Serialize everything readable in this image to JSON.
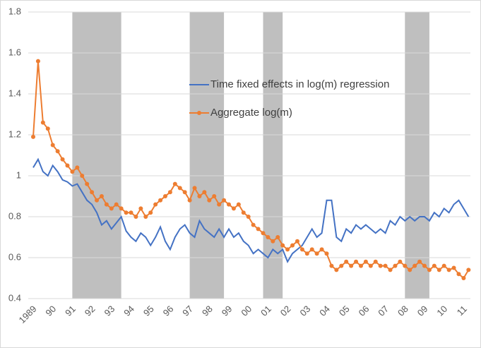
{
  "chart_data": {
    "type": "line",
    "categories": [
      "1989",
      null,
      null,
      null,
      "90",
      null,
      null,
      null,
      "91",
      null,
      null,
      null,
      "92",
      null,
      null,
      null,
      "93",
      null,
      null,
      null,
      "94",
      null,
      null,
      null,
      "95",
      null,
      null,
      null,
      "96",
      null,
      null,
      null,
      "97",
      null,
      null,
      null,
      "98",
      null,
      null,
      null,
      "99",
      null,
      null,
      null,
      "00",
      null,
      null,
      null,
      "01",
      null,
      null,
      null,
      "02",
      null,
      null,
      null,
      "03",
      null,
      null,
      null,
      "04",
      null,
      null,
      null,
      "05",
      null,
      null,
      null,
      "06",
      null,
      null,
      null,
      "07",
      null,
      null,
      null,
      "08",
      null,
      null,
      null,
      "09",
      null,
      null,
      null,
      "10",
      null,
      null,
      null,
      "11",
      null
    ],
    "series": [
      {
        "name": "Time fixed effects in log(m) regression",
        "color": "#4472c4",
        "markers": false,
        "values": [
          1.04,
          1.08,
          1.02,
          1.0,
          1.05,
          1.02,
          0.98,
          0.97,
          0.95,
          0.96,
          0.92,
          0.88,
          0.86,
          0.82,
          0.76,
          0.78,
          0.74,
          0.77,
          0.8,
          0.73,
          0.7,
          0.68,
          0.72,
          0.7,
          0.66,
          0.7,
          0.75,
          0.68,
          0.64,
          0.7,
          0.74,
          0.76,
          0.72,
          0.7,
          0.78,
          0.74,
          0.72,
          0.7,
          0.74,
          0.7,
          0.74,
          0.7,
          0.72,
          0.68,
          0.66,
          0.62,
          0.64,
          0.62,
          0.6,
          0.64,
          0.62,
          0.64,
          0.58,
          0.62,
          0.64,
          0.66,
          0.7,
          0.74,
          0.7,
          0.72,
          0.88,
          0.88,
          0.7,
          0.68,
          0.74,
          0.72,
          0.76,
          0.74,
          0.76,
          0.74,
          0.72,
          0.74,
          0.72,
          0.78,
          0.76,
          0.8,
          0.78,
          0.8,
          0.78,
          0.8,
          0.8,
          0.78,
          0.82,
          0.8,
          0.84,
          0.82,
          0.86,
          0.88,
          0.84,
          0.8
        ]
      },
      {
        "name": "Aggregate log(m)",
        "color": "#ed7d31",
        "markers": true,
        "values": [
          1.19,
          1.56,
          1.26,
          1.23,
          1.15,
          1.12,
          1.08,
          1.05,
          1.02,
          1.04,
          1.0,
          0.96,
          0.92,
          0.88,
          0.9,
          0.86,
          0.84,
          0.86,
          0.84,
          0.82,
          0.82,
          0.8,
          0.84,
          0.8,
          0.82,
          0.86,
          0.88,
          0.9,
          0.92,
          0.96,
          0.94,
          0.92,
          0.88,
          0.94,
          0.9,
          0.92,
          0.88,
          0.9,
          0.86,
          0.88,
          0.86,
          0.84,
          0.86,
          0.82,
          0.8,
          0.76,
          0.74,
          0.72,
          0.7,
          0.68,
          0.7,
          0.66,
          0.64,
          0.66,
          0.68,
          0.64,
          0.62,
          0.64,
          0.62,
          0.64,
          0.62,
          0.56,
          0.54,
          0.56,
          0.58,
          0.56,
          0.58,
          0.56,
          0.58,
          0.56,
          0.58,
          0.56,
          0.56,
          0.54,
          0.56,
          0.58,
          0.56,
          0.54,
          0.56,
          0.58,
          0.56,
          0.54,
          0.56,
          0.54,
          0.56,
          0.54,
          0.55,
          0.52,
          0.5,
          0.54
        ]
      }
    ],
    "ylim": [
      0.4,
      1.8
    ],
    "yticks": [
      0.4,
      0.6,
      0.8,
      1,
      1.2,
      1.4,
      1.6,
      1.8
    ],
    "grid": true,
    "legend": "center",
    "shaded": [
      {
        "from": 8,
        "to": 18
      },
      {
        "from": 32,
        "to": 39
      },
      {
        "from": 47,
        "to": 51
      },
      {
        "from": 76,
        "to": 81
      }
    ],
    "shade_color": "#bfbfbf"
  }
}
